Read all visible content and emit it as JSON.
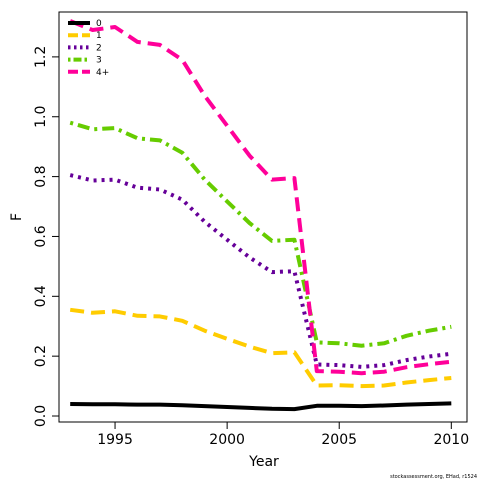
{
  "chart_data": {
    "type": "line",
    "title": "",
    "xlabel": "Year",
    "ylabel": "F",
    "xlim": [
      1992.5,
      2010.7
    ],
    "ylim": [
      -0.02,
      1.35
    ],
    "x_ticks": [
      "1995",
      "2000",
      "2005",
      "2010"
    ],
    "y_ticks": [
      "0.0",
      "0.2",
      "0.4",
      "0.6",
      "0.8",
      "1.0",
      "1.2"
    ],
    "legend_position": "top-left",
    "grid": false,
    "credit": "stockassessment.org, EHad, r1524",
    "x": [
      1993,
      1994,
      1995,
      1996,
      1997,
      1998,
      1999,
      2000,
      2001,
      2002,
      2003,
      2004,
      2005,
      2006,
      2007,
      2008,
      2009,
      2010
    ],
    "series": [
      {
        "name": "0",
        "color": "#000000",
        "dash": "solid",
        "values": [
          0.04,
          0.039,
          0.039,
          0.038,
          0.038,
          0.036,
          0.033,
          0.03,
          0.027,
          0.024,
          0.023,
          0.034,
          0.034,
          0.033,
          0.035,
          0.038,
          0.04,
          0.042
        ]
      },
      {
        "name": "1",
        "color": "#ffcc00",
        "dash": "long-dash",
        "values": [
          0.355,
          0.345,
          0.35,
          0.335,
          0.333,
          0.318,
          0.285,
          0.258,
          0.232,
          0.21,
          0.213,
          0.102,
          0.103,
          0.1,
          0.102,
          0.112,
          0.12,
          0.127
        ]
      },
      {
        "name": "2",
        "color": "#660099",
        "dash": "dotted",
        "values": [
          0.805,
          0.787,
          0.79,
          0.763,
          0.757,
          0.723,
          0.649,
          0.589,
          0.53,
          0.481,
          0.484,
          0.172,
          0.17,
          0.164,
          0.17,
          0.187,
          0.199,
          0.208
        ]
      },
      {
        "name": "3",
        "color": "#66cc00",
        "dash": "dot-dash",
        "values": [
          0.98,
          0.958,
          0.962,
          0.928,
          0.921,
          0.88,
          0.79,
          0.717,
          0.645,
          0.585,
          0.589,
          0.246,
          0.243,
          0.235,
          0.243,
          0.268,
          0.285,
          0.298
        ]
      },
      {
        "name": "4+",
        "color": "#ff0099",
        "dash": "long-dash",
        "values": [
          1.32,
          1.29,
          1.3,
          1.25,
          1.24,
          1.19,
          1.07,
          0.97,
          0.87,
          0.79,
          0.795,
          0.15,
          0.148,
          0.143,
          0.148,
          0.163,
          0.173,
          0.181
        ]
      }
    ]
  }
}
